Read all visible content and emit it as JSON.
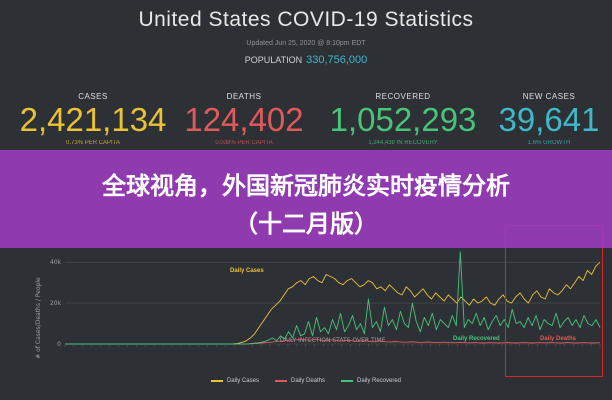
{
  "title": "United States COVID-19 Statistics",
  "updated": "Updated Jun 25, 2020 @ 8:10pm EDT",
  "population": {
    "label": "POPULATION",
    "value": "330,756,000"
  },
  "stats": [
    {
      "label": "CASES",
      "value": "2,421,134",
      "sub": "0.73% PER CAPITA",
      "color": "#e9c236"
    },
    {
      "label": "DEATHS",
      "value": "124,402",
      "sub": "0.038% PER CAPITA",
      "color": "#e05a5a"
    },
    {
      "label": "RECOVERED",
      "value": "1,052,293",
      "sub": "1,244,439 IN RECOVERY",
      "color": "#48c47a"
    },
    {
      "label": "NEW CASES",
      "value": "39,641",
      "sub": "1.6% GROWTH",
      "color": "#3fb8c9"
    }
  ],
  "banner": {
    "line1": "全球视角，外国新冠肺炎实时疫情分析",
    "line2": "（十二月版）",
    "color": "#9b3cbe"
  },
  "chart_data": {
    "type": "line",
    "title": "DAILY INFECTION STATS OVER TIME",
    "ylabel": "# of Cases/Deaths / People",
    "ylim": [
      0,
      45000
    ],
    "yticks": [
      "40k",
      "20k",
      "0"
    ],
    "series": [
      {
        "name": "Daily Cases",
        "color": "#e9c236",
        "values": [
          0,
          0,
          0,
          0,
          0,
          0,
          0,
          0,
          0,
          0,
          0,
          0,
          0,
          0,
          0,
          0,
          0,
          0,
          0,
          0,
          0,
          0,
          0,
          0,
          0,
          0,
          0,
          0,
          0,
          0,
          0,
          0,
          0,
          0,
          0,
          0,
          0,
          0,
          0,
          0,
          100,
          300,
          800,
          1500,
          3000,
          5000,
          8000,
          11000,
          14000,
          17000,
          19000,
          21000,
          24000,
          27000,
          28000,
          30000,
          31000,
          29000,
          32000,
          33000,
          31000,
          30000,
          34000,
          33000,
          32000,
          30000,
          29000,
          31000,
          32000,
          30000,
          28000,
          29000,
          31000,
          30000,
          27000,
          28000,
          26000,
          29000,
          27000,
          25000,
          24000,
          28000,
          26000,
          23000,
          25000,
          27000,
          24000,
          22000,
          25000,
          23000,
          21000,
          24000,
          22000,
          20000,
          23000,
          21000,
          19000,
          22000,
          20000,
          21000,
          23000,
          20000,
          19000,
          22000,
          24000,
          21000,
          20000,
          23000,
          25000,
          22000,
          20000,
          24000,
          26000,
          23000,
          22000,
          27000,
          25000,
          24000,
          26000,
          29000,
          27000,
          30000,
          33000,
          31000,
          36000,
          34000,
          38000,
          40000
        ]
      },
      {
        "name": "Daily Deaths",
        "color": "#e05a5a",
        "values": [
          0,
          0,
          0,
          0,
          0,
          0,
          0,
          0,
          0,
          0,
          0,
          0,
          0,
          0,
          0,
          0,
          0,
          0,
          0,
          0,
          0,
          0,
          0,
          0,
          0,
          0,
          0,
          0,
          0,
          0,
          0,
          0,
          0,
          0,
          0,
          0,
          0,
          0,
          0,
          0,
          0,
          0,
          0,
          0,
          0,
          50,
          100,
          200,
          300,
          500,
          700,
          900,
          1100,
          1300,
          1500,
          1700,
          1900,
          2000,
          2100,
          2200,
          2000,
          1900,
          2300,
          2100,
          1800,
          1700,
          2000,
          1900,
          1600,
          1500,
          1800,
          1700,
          1400,
          1300,
          1600,
          1500,
          1200,
          1100,
          1400,
          1300,
          1100,
          1000,
          1200,
          1100,
          900,
          900,
          1100,
          1000,
          800,
          800,
          1000,
          900,
          700,
          700,
          900,
          800,
          700,
          600,
          800,
          700,
          600,
          600,
          700,
          600,
          500,
          600,
          700,
          600,
          500,
          600,
          700,
          600,
          500,
          600,
          700,
          600,
          500,
          600,
          700,
          600,
          600,
          700,
          600,
          500,
          600,
          700,
          600,
          500,
          600,
          700,
          600,
          500,
          600,
          600
        ]
      },
      {
        "name": "Daily Recovered",
        "color": "#48c47a",
        "values": [
          0,
          0,
          0,
          0,
          0,
          0,
          0,
          0,
          0,
          0,
          0,
          0,
          0,
          0,
          0,
          0,
          0,
          0,
          0,
          0,
          0,
          0,
          0,
          0,
          0,
          0,
          0,
          0,
          0,
          0,
          0,
          0,
          0,
          0,
          0,
          0,
          0,
          0,
          0,
          0,
          0,
          0,
          0,
          0,
          0,
          0,
          100,
          300,
          500,
          800,
          1200,
          2000,
          3000,
          1500,
          4000,
          2500,
          6000,
          3000,
          9000,
          4000,
          5000,
          11000,
          4000,
          13000,
          6000,
          8000,
          5000,
          12000,
          7000,
          15000,
          6000,
          9000,
          14000,
          7000,
          10000,
          5000,
          22000,
          8000,
          11000,
          6000,
          18000,
          9000,
          12000,
          7000,
          16000,
          10000,
          8000,
          20000,
          11000,
          6000,
          13000,
          9000,
          15000,
          7000,
          12000,
          10000,
          8000,
          14000,
          9000,
          45000,
          8000,
          12000,
          10000,
          15000,
          9000,
          13000,
          7000,
          11000,
          14000,
          9000,
          12000,
          8000,
          17000,
          10000,
          11000,
          8000,
          13000,
          9000,
          14000,
          7000,
          12000,
          10000,
          9000,
          15000,
          8000,
          11000,
          13000,
          9000,
          12000,
          8000,
          14000,
          10000,
          9000,
          12000,
          8000
        ]
      }
    ],
    "annotations": [
      "Daily Cases",
      "Daily Recovered",
      "Daily Deaths"
    ]
  }
}
